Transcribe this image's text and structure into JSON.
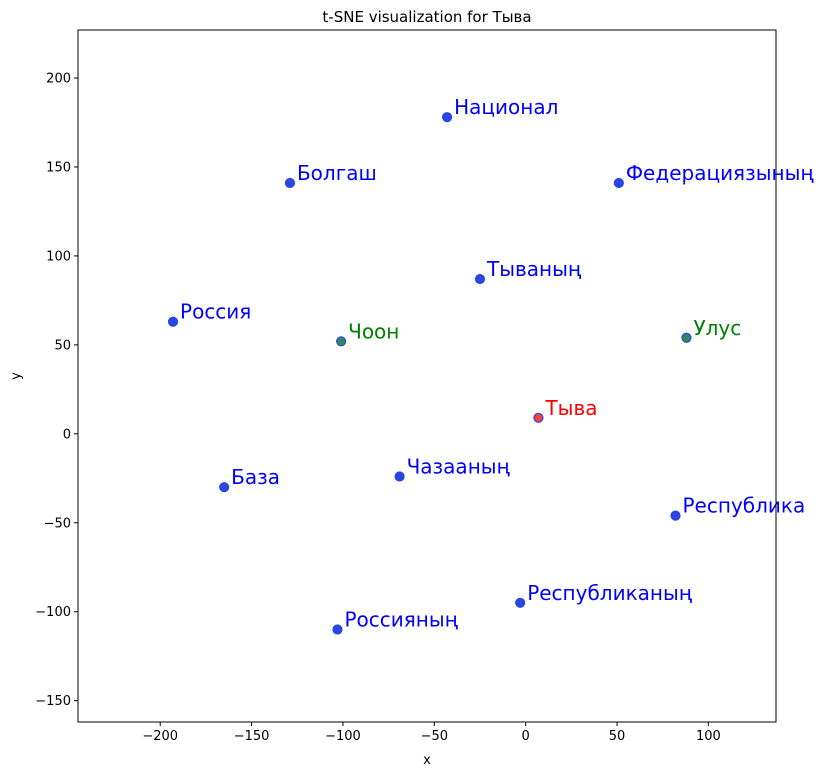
{
  "chart_data": {
    "type": "scatter",
    "title": "t-SNE visualization for Тыва",
    "xlabel": "x",
    "ylabel": "y",
    "xlim": [
      -245,
      137
    ],
    "ylim": [
      -162,
      227
    ],
    "xticks": [
      -200,
      -150,
      -100,
      -50,
      0,
      50,
      100
    ],
    "yticks": [
      -150,
      -100,
      -50,
      0,
      50,
      100,
      150,
      200
    ],
    "xtick_labels": [
      "−200",
      "−150",
      "−100",
      "−50",
      "0",
      "50",
      "100"
    ],
    "ytick_labels": [
      "−150",
      "−100",
      "−50",
      "0",
      "50",
      "100",
      "150",
      "200"
    ],
    "grid": false,
    "colors": {
      "neighbor": "#0000ff",
      "target": "#ff0000",
      "related": "#008000",
      "marker_blue": "#2a46e0",
      "marker_green": "#2e8b57",
      "marker_red": "#f04040"
    },
    "points": [
      {
        "label": "Национал",
        "x": -43,
        "y": 178,
        "group": "neighbor"
      },
      {
        "label": "Болгаш",
        "x": -129,
        "y": 141,
        "group": "neighbor"
      },
      {
        "label": "Федерациязының",
        "x": 51,
        "y": 141,
        "group": "neighbor"
      },
      {
        "label": "Тываның",
        "x": -25,
        "y": 87,
        "group": "neighbor"
      },
      {
        "label": "Россия",
        "x": -193,
        "y": 63,
        "group": "neighbor"
      },
      {
        "label": "Чоон",
        "x": -101,
        "y": 52,
        "group": "related"
      },
      {
        "label": "Улус",
        "x": 88,
        "y": 54,
        "group": "related"
      },
      {
        "label": "Тыва",
        "x": 7,
        "y": 9,
        "group": "target"
      },
      {
        "label": "База",
        "x": -165,
        "y": -30,
        "group": "neighbor"
      },
      {
        "label": "Чазааның",
        "x": -69,
        "y": -24,
        "group": "neighbor"
      },
      {
        "label": "Республика",
        "x": 82,
        "y": -46,
        "group": "neighbor"
      },
      {
        "label": "Республиканың",
        "x": -3,
        "y": -95,
        "group": "neighbor"
      },
      {
        "label": "Россияның",
        "x": -103,
        "y": -110,
        "group": "neighbor"
      }
    ]
  }
}
